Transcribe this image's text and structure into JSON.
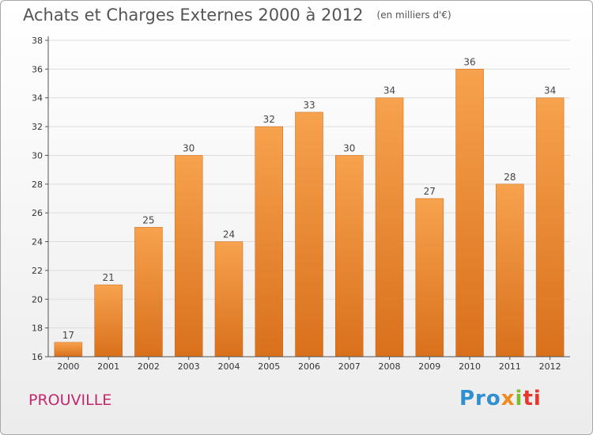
{
  "header": {
    "title": "Achats et Charges Externes 2000 à 2012",
    "subtitle": "(en milliers d'€)"
  },
  "footer": {
    "commune": "PROUVILLE",
    "logo": [
      "Pro",
      "x",
      "i",
      "ti"
    ]
  },
  "colors": {
    "bar_top": "#f7a24e",
    "bar_bottom": "#d9701c",
    "grid": "#dddddd",
    "axis": "#555555",
    "commune": "#c4286c"
  },
  "chart_data": {
    "type": "bar",
    "categories": [
      "2000",
      "2001",
      "2002",
      "2003",
      "2004",
      "2005",
      "2006",
      "2007",
      "2008",
      "2009",
      "2010",
      "2011",
      "2012"
    ],
    "values": [
      17,
      21,
      25,
      30,
      24,
      32,
      33,
      30,
      34,
      27,
      36,
      28,
      34
    ],
    "title": "Achats et Charges Externes 2000 à 2012",
    "xlabel": "",
    "ylabel": "",
    "ylim": [
      16,
      38
    ],
    "yticks": [
      16,
      18,
      20,
      22,
      24,
      26,
      28,
      30,
      32,
      34,
      36,
      38
    ],
    "grid": true,
    "data_labels": true
  }
}
